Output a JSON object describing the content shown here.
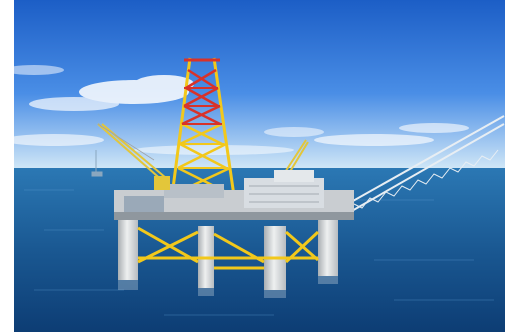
{
  "scene": {
    "subject": "offshore-oil-platform",
    "colors": {
      "sky_top": "#1f63c9",
      "sky_mid": "#4a8ee6",
      "horizon": "#cfe6f6",
      "sea_far": "#2a76b3",
      "sea_near": "#0d3f78",
      "derrick_red": "#d8322a",
      "derrick_yellow": "#f2c81b",
      "legs": "#d9dcdc",
      "deck": "#c9cdd1"
    },
    "elements": [
      "sky",
      "clouds",
      "sea",
      "derrick",
      "crane-boom-left",
      "crane-boom-right",
      "deck-modules",
      "support-legs",
      "bracing"
    ]
  }
}
